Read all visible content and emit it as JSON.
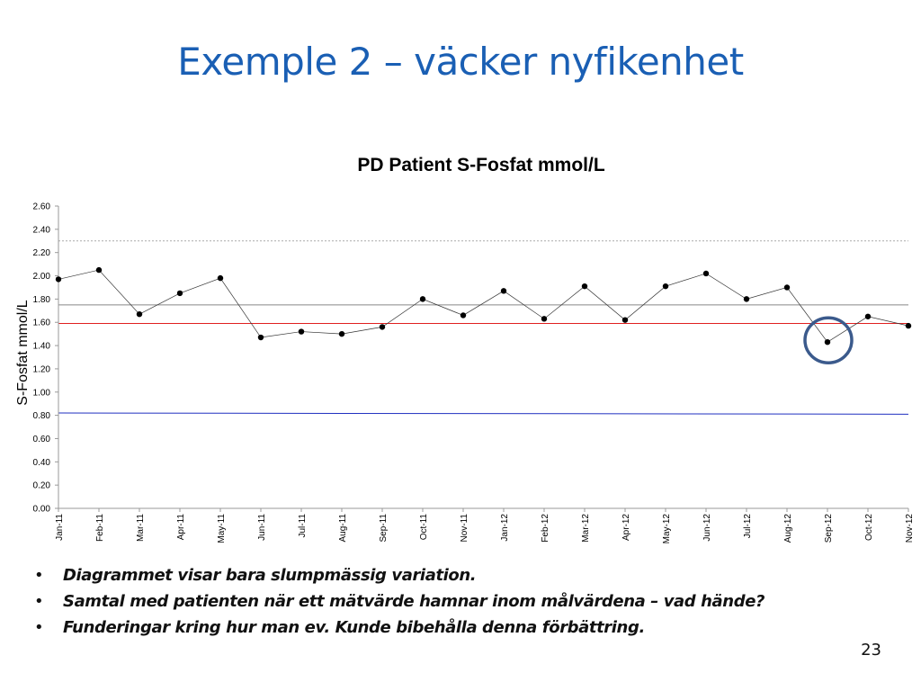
{
  "slide": {
    "title": "Exemple 2 – väcker nyfikenhet",
    "bullets": [
      "Diagrammet visar bara slumpmässig variation.",
      "Samtal med patienten när ett mätvärde hamnar inom målvärdena – vad hände?",
      "Funderingar kring hur man ev. Kunde bibehålla denna förbättring."
    ],
    "bullet_symbol": "•",
    "page_number": "23"
  },
  "chart_data": {
    "type": "line",
    "title": "PD Patient S-Fosfat mmol/L",
    "xlabel": "",
    "ylabel": "S-Fosfat mmol/L",
    "ylim": [
      0,
      2.6
    ],
    "yticks": [
      "0.00",
      "0.20",
      "0.40",
      "0.60",
      "0.80",
      "1.00",
      "1.20",
      "1.40",
      "1.60",
      "1.80",
      "2.00",
      "2.20",
      "2.40",
      "2.60"
    ],
    "categories": [
      "Jan-11",
      "Feb-11",
      "Mar-11",
      "Apr-11",
      "May-11",
      "Jun-11",
      "Jul-11",
      "Aug-11",
      "Sep-11",
      "Oct-11",
      "Nov-11",
      "Jan-12",
      "Feb-12",
      "Mar-12",
      "Apr-12",
      "May-12",
      "Jun-12",
      "Jul-12",
      "Aug-12",
      "Sep-12",
      "Oct-12",
      "Nov-12"
    ],
    "series": [
      {
        "values": [
          1.97,
          2.05,
          1.67,
          1.85,
          1.98,
          1.47,
          1.52,
          1.5,
          1.56,
          1.8,
          1.66,
          1.87,
          1.63,
          1.91,
          1.62,
          1.91,
          2.02,
          1.8,
          1.9,
          1.43,
          1.65,
          1.57
        ],
        "color": "#333333",
        "marker": "circle"
      }
    ],
    "reference_lines": [
      {
        "y_start": 1.59,
        "y_end": 1.59,
        "color": "#e02020"
      },
      {
        "y_start": 0.82,
        "y_end": 0.81,
        "color": "#2030c0"
      },
      {
        "y": 2.3,
        "color": "#aaaaaa",
        "style": "dotted"
      },
      {
        "y": 1.75,
        "color": "#888888",
        "style": "solid"
      }
    ],
    "highlight": {
      "category": "Sep-12",
      "color": "#3b5a8c",
      "shape": "circle"
    },
    "grid": false,
    "legend": "none"
  }
}
